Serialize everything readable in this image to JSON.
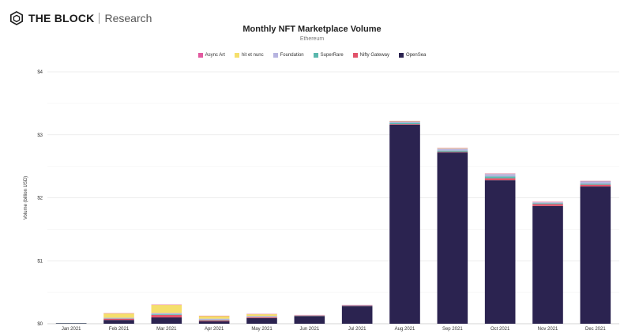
{
  "brand": {
    "name": "THE BLOCK",
    "sub": "Research",
    "logo_icon": "the-block-cube-icon"
  },
  "chart_data": {
    "type": "bar",
    "stacked": true,
    "title": "Monthly NFT Marketplace Volume",
    "subtitle": "Ethereum",
    "ylabel": "Volume (billion USD)",
    "xlabel": "",
    "ylim": [
      0,
      4
    ],
    "yticks": [
      "$0",
      "$1",
      "$2",
      "$3",
      "$4"
    ],
    "grid": true,
    "legend_position": "top-center",
    "categories": [
      "Jan 2021",
      "Feb 2021",
      "Mar 2021",
      "Apr 2021",
      "May 2021",
      "Jun 2021",
      "Jul 2021",
      "Aug 2021",
      "Sep 2021",
      "Oct 2021",
      "Nov 2021",
      "Dec 2021"
    ],
    "series": [
      {
        "name": "OpenSea",
        "color": "#2b2350",
        "values": [
          0.008,
          0.06,
          0.1,
          0.04,
          0.09,
          0.12,
          0.28,
          3.16,
          2.72,
          2.28,
          1.87,
          2.18
        ]
      },
      {
        "name": "Nifty Gateway",
        "color": "#e2536b",
        "values": [
          0.002,
          0.02,
          0.04,
          0.015,
          0.015,
          0.004,
          0.006,
          0.01,
          0.01,
          0.03,
          0.03,
          0.03
        ]
      },
      {
        "name": "SuperRare",
        "color": "#5ab7ad",
        "values": [
          0.001,
          0.005,
          0.01,
          0.01,
          0.006,
          0.003,
          0.004,
          0.02,
          0.02,
          0.03,
          0.015,
          0.015
        ]
      },
      {
        "name": "Foundation",
        "color": "#b7b4e0",
        "values": [
          0.0,
          0.01,
          0.02,
          0.015,
          0.012,
          0.005,
          0.006,
          0.02,
          0.03,
          0.04,
          0.015,
          0.04
        ]
      },
      {
        "name": "hit et nunc",
        "color": "#f5df6c",
        "values": [
          0.0,
          0.07,
          0.13,
          0.045,
          0.03,
          0.006,
          0.004,
          0.01,
          0.01,
          0.005,
          0.005,
          0.005
        ]
      },
      {
        "name": "Async Art",
        "color": "#e25aa0",
        "values": [
          0.0,
          0.002,
          0.005,
          0.002,
          0.002,
          0.001,
          0.001,
          0.002,
          0.002,
          0.002,
          0.001,
          0.001
        ]
      }
    ],
    "legend_order": [
      "Async Art",
      "hit et nunc",
      "Foundation",
      "SuperRare",
      "Nifty Gateway",
      "OpenSea"
    ]
  }
}
